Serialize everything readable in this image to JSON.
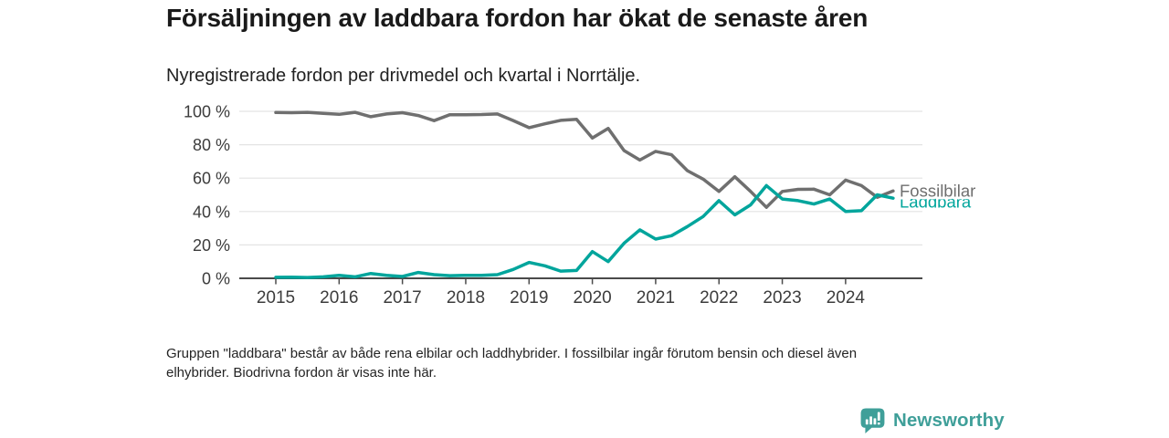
{
  "header": {
    "title": "Försäljningen av laddbara fordon har ökat de senaste åren",
    "subtitle": "Nyregistrerade fordon per drivmedel och kvartal i Norrtälje."
  },
  "footnote": {
    "line1": "Gruppen \"laddbara\" består av både rena elbilar och laddhybrider. I fossilbilar ingår förutom bensin och diesel även",
    "line2": "elhybrider. Biodrivna fordon är visas inte här."
  },
  "branding": {
    "name": "Newsworthy",
    "icon": "newsworthy-speech-bubble-bar-chart-icon",
    "color": "#3f9f99"
  },
  "chart_data": {
    "type": "line",
    "title": "Försäljningen av laddbara fordon har ökat de senaste åren",
    "subtitle": "Nyregistrerade fordon per drivmedel och kvartal i Norrtälje.",
    "x_unit": "quarter",
    "x_tick_years": [
      2015,
      2016,
      2017,
      2018,
      2019,
      2020,
      2021,
      2022,
      2023,
      2024
    ],
    "points_per_year": 4,
    "y_ticks": [
      100,
      80,
      60,
      40,
      20,
      0
    ],
    "y_tick_format": "{v} %",
    "ylim": [
      0,
      100
    ],
    "grid": "horizontal",
    "legend": "end-of-line-labels",
    "axis_color": "#4a4a4a",
    "gridline_color": "#e4e4e4",
    "tick_label_color": "#3c3c3c",
    "series": [
      {
        "name": "Fossilbilar",
        "color": "#6f6f6f",
        "values": [
          99.3,
          99.2,
          99.4,
          98.8,
          98.2,
          99.4,
          96.8,
          98.4,
          99.2,
          97.5,
          94.4,
          98.0,
          98.0,
          98.1,
          98.4,
          94.5,
          90.2,
          92.5,
          94.6,
          95.2,
          84.0,
          89.8,
          76.5,
          70.8,
          76.0,
          74.0,
          64.5,
          59.4,
          52.0,
          60.8,
          52.0,
          42.5,
          52.0,
          53.3,
          53.4,
          50.0,
          58.8,
          55.5,
          48.5,
          52.3
        ]
      },
      {
        "name": "Laddbara",
        "color": "#00a59c",
        "values": [
          0.6,
          0.7,
          0.5,
          0.9,
          1.8,
          0.9,
          2.9,
          1.8,
          1.1,
          3.5,
          2.2,
          1.6,
          1.8,
          1.8,
          2.2,
          5.3,
          9.5,
          7.5,
          4.3,
          4.7,
          16.0,
          10.0,
          21.0,
          29.0,
          23.5,
          25.5,
          31.0,
          37.0,
          46.5,
          38.0,
          44.0,
          55.5,
          47.5,
          46.5,
          44.5,
          47.5,
          40.0,
          40.5,
          50.0,
          48.0
        ]
      }
    ]
  }
}
